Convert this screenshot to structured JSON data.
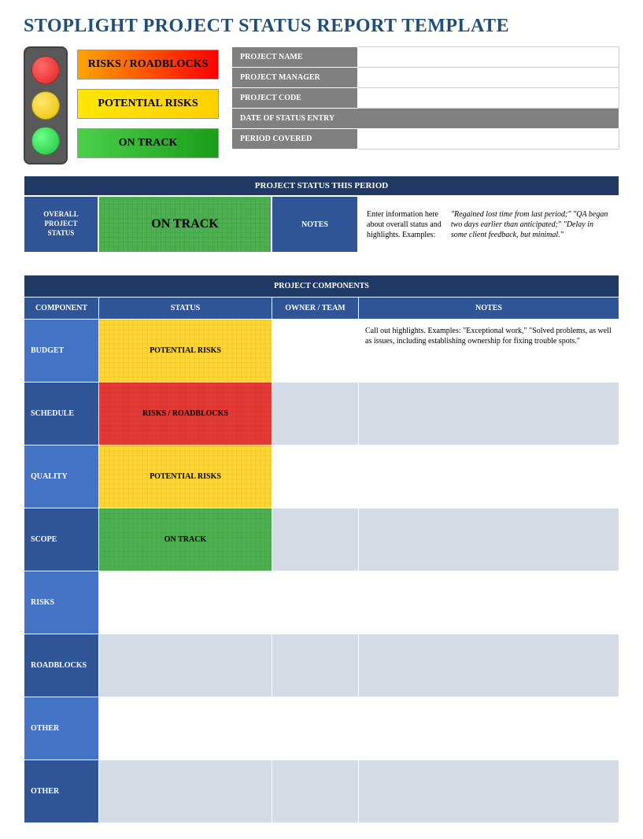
{
  "title": "STOPLIGHT PROJECT STATUS REPORT TEMPLATE",
  "colors": {
    "title": "#1f4e79",
    "header_dark": "#1f3864",
    "header_mid": "#2f5597",
    "row_blue_a": "#4472c4",
    "row_blue_b": "#2f5597",
    "row_light_a": "#ffffff",
    "row_light_b": "#d6dce5",
    "info_label_bg": "#808080",
    "green": "#4caf50",
    "yellow": "#ffd633",
    "red": "#e53935"
  },
  "legend": {
    "red": "RISKS / ROADBLOCKS",
    "yellow": "POTENTIAL RISKS",
    "green": "ON TRACK"
  },
  "info_fields": [
    {
      "label": "PROJECT NAME",
      "value": "",
      "full": false
    },
    {
      "label": "PROJECT MANAGER",
      "value": "",
      "full": false
    },
    {
      "label": "PROJECT CODE",
      "value": "",
      "full": false
    },
    {
      "label": "DATE OF STATUS ENTRY",
      "value": "",
      "full": true
    },
    {
      "label": "PERIOD COVERED",
      "value": "",
      "full": false
    }
  ],
  "status_period": {
    "header": "PROJECT STATUS THIS PERIOD",
    "overall_label": "OVERALL\nPROJECT\nSTATUS",
    "overall_status_text": "ON TRACK",
    "overall_status_color": "green",
    "notes_label": "NOTES",
    "notes_hint": "Enter information here about overall status and highlights. Examples:",
    "notes_example": "\"Regained lost time from last period;\" \"QA began two days earlier than anticipated;\" \"Delay in some client feedback, but minimal.\""
  },
  "components": {
    "header": "PROJECT COMPONENTS",
    "columns": [
      "COMPONENT",
      "STATUS",
      "OWNER / TEAM",
      "NOTES"
    ],
    "rows": [
      {
        "component": "BUDGET",
        "status_text": "POTENTIAL RISKS",
        "status_color": "yellow",
        "owner": "",
        "notes": "Call out highlights. Examples: \"Exceptional work,\" \"Solved problems, as well as issues, including establishing ownership for fixing trouble spots.\""
      },
      {
        "component": "SCHEDULE",
        "status_text": "RISKS / ROADBLOCKS",
        "status_color": "red",
        "owner": "",
        "notes": ""
      },
      {
        "component": "QUALITY",
        "status_text": "POTENTIAL RISKS",
        "status_color": "yellow",
        "owner": "",
        "notes": ""
      },
      {
        "component": "SCOPE",
        "status_text": "ON TRACK",
        "status_color": "green",
        "owner": "",
        "notes": ""
      },
      {
        "component": "RISKS",
        "status_text": "",
        "status_color": "",
        "owner": "",
        "notes": ""
      },
      {
        "component": "ROADBLOCKS",
        "status_text": "",
        "status_color": "",
        "owner": "",
        "notes": ""
      },
      {
        "component": "OTHER",
        "status_text": "",
        "status_color": "",
        "owner": "",
        "notes": ""
      },
      {
        "component": "OTHER",
        "status_text": "",
        "status_color": "",
        "owner": "",
        "notes": ""
      }
    ]
  }
}
